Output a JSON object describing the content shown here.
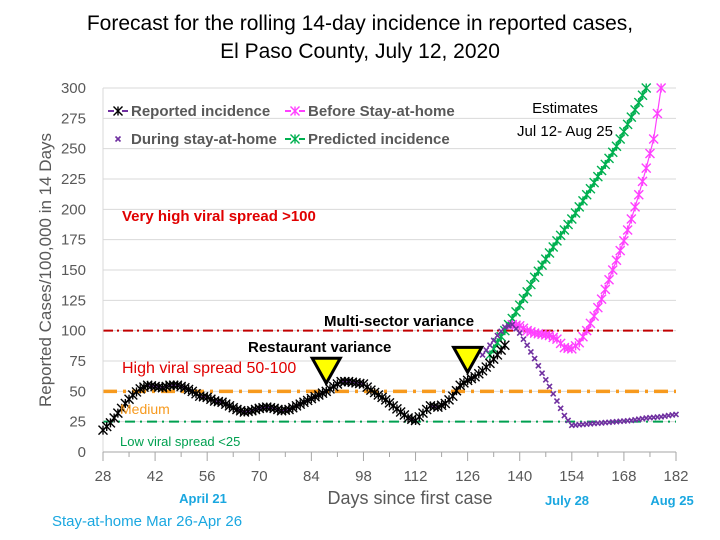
{
  "chart_data": {
    "type": "line",
    "title": "Forecast for the rolling 14-day incidence in reported cases,",
    "subtitle": "El Paso County, July 12, 2020",
    "xlabel": "Days since first case",
    "ylabel": "Reported Cases/100,000 in 14 Days",
    "xlim": [
      28,
      182
    ],
    "ylim": [
      0,
      300
    ],
    "xticks": [
      28,
      42,
      56,
      70,
      84,
      98,
      112,
      126,
      140,
      154,
      168,
      182
    ],
    "yticks": [
      0,
      25,
      50,
      75,
      100,
      125,
      150,
      175,
      200,
      225,
      250,
      275,
      300
    ],
    "grid": true,
    "legend_position": "top-left",
    "series": [
      {
        "name": "Reported incidence",
        "color": "#000000",
        "line_color": "#7030a0",
        "marker": "asterisk",
        "x": [
          28,
          30,
          32,
          34,
          36,
          38,
          40,
          42,
          44,
          46,
          48,
          50,
          52,
          54,
          56,
          58,
          60,
          62,
          64,
          66,
          68,
          70,
          72,
          74,
          76,
          78,
          80,
          82,
          84,
          86,
          88,
          90,
          92,
          94,
          96,
          98,
          100,
          102,
          104,
          106,
          108,
          110,
          112,
          114,
          116,
          118,
          120,
          122,
          124,
          126,
          128,
          130,
          132,
          134,
          136
        ],
        "values": [
          18,
          24,
          32,
          40,
          47,
          52,
          55,
          54,
          53,
          55,
          55,
          53,
          50,
          46,
          45,
          42,
          41,
          38,
          35,
          33,
          34,
          36,
          37,
          36,
          34,
          35,
          38,
          41,
          44,
          47,
          50,
          54,
          58,
          58,
          57,
          56,
          51,
          47,
          43,
          38,
          33,
          28,
          26,
          32,
          38,
          37,
          40,
          46,
          55,
          59,
          62,
          67,
          73,
          80,
          88
        ]
      },
      {
        "name": "Before Stay-at-home",
        "color": "#ff40ff",
        "marker": "asterisk",
        "x": [
          138,
          140,
          142,
          144,
          146,
          148,
          150,
          152,
          154,
          156,
          158,
          160,
          162,
          164,
          166,
          168,
          170,
          172,
          174,
          176,
          178
        ],
        "values": [
          105,
          104,
          100,
          98,
          97,
          96,
          93,
          86,
          85,
          90,
          100,
          112,
          126,
          142,
          158,
          174,
          192,
          212,
          234,
          258,
          300
        ]
      },
      {
        "name": "During stay-at-home",
        "color": "#7030a0",
        "marker": "x",
        "x": [
          130,
          132,
          134,
          136,
          138,
          140,
          142,
          144,
          146,
          148,
          150,
          152,
          154,
          158,
          162,
          166,
          170,
          174,
          178,
          182
        ],
        "values": [
          80,
          88,
          96,
          103,
          105,
          98,
          88,
          77,
          65,
          54,
          42,
          30,
          22,
          23,
          24,
          25,
          26,
          28,
          29,
          31
        ]
      },
      {
        "name": "Predicted incidence",
        "color": "#00b050",
        "marker": "asterisk",
        "x": [
          132,
          134,
          136,
          138,
          140,
          142,
          144,
          146,
          148,
          150,
          152,
          154,
          156,
          158,
          160,
          162,
          164,
          166,
          168,
          170,
          172,
          174,
          176
        ],
        "values": [
          80,
          90,
          100,
          110,
          121,
          132,
          144,
          154,
          164,
          174,
          183,
          192,
          202,
          212,
          222,
          232,
          242,
          252,
          264,
          276,
          288,
          300,
          312
        ]
      }
    ],
    "reference_lines": [
      {
        "name": "Very high threshold",
        "value": 100,
        "color": "#c00000",
        "style": "dash-dot"
      },
      {
        "name": "Medium threshold",
        "value": 50,
        "color": "#f79a1e",
        "style": "dash-dot"
      },
      {
        "name": "Low threshold",
        "value": 25,
        "color": "#00a050",
        "style": "dash-dot"
      }
    ],
    "annotations": [
      {
        "text": "Very high viral spread >100",
        "color": "#e00000"
      },
      {
        "text": "High viral spread 50-100",
        "color": "#e00000"
      },
      {
        "text": "Medium",
        "color": "#f79a1e"
      },
      {
        "text": "Low viral spread <25",
        "color": "#00a050"
      },
      {
        "text": "Restaurant variance",
        "color": "#000000"
      },
      {
        "text": "Multi-sector variance",
        "color": "#000000"
      },
      {
        "text": "Estimates",
        "color": "#000000"
      },
      {
        "text": "Jul 12- Aug 25",
        "color": "#000000"
      },
      {
        "text": "April 21",
        "color": "#1aa7e0"
      },
      {
        "text": "Stay-at-home Mar 26-Apr 26",
        "color": "#1aa7e0"
      },
      {
        "text": "July 28",
        "color": "#1aa7e0"
      },
      {
        "text": "Aug 25",
        "color": "#1aa7e0"
      }
    ],
    "markers": [
      {
        "name": "Restaurant variance marker",
        "x": 88,
        "y": 55,
        "color": "#ffff00"
      },
      {
        "name": "Multi-sector variance marker",
        "x": 126,
        "y": 64,
        "color": "#ffff00"
      }
    ]
  }
}
